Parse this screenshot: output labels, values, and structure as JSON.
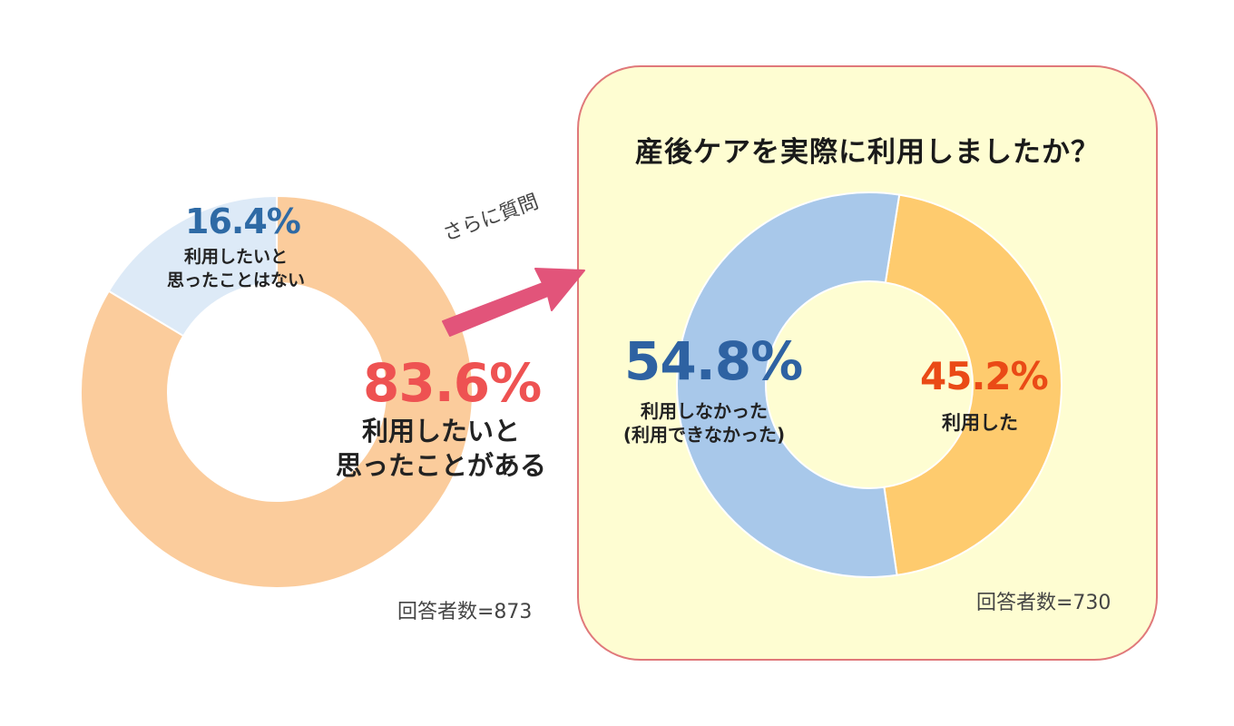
{
  "arrow_note": "さらに質問",
  "chart_data": [
    {
      "type": "pie",
      "variant": "donut",
      "categories": [
        "利用したいと思ったことはない",
        "利用したいと思ったことがある"
      ],
      "values": [
        16.4,
        83.6
      ],
      "colors": [
        "#ddeaf7",
        "#fbcc9c"
      ],
      "value_labels": [
        "16.4%",
        "83.6%"
      ],
      "label_colors": [
        "#2e6aa5",
        "#ee5252"
      ],
      "slice_labels": [
        [
          "利用したいと",
          "思ったことはない"
        ],
        [
          "利用したいと",
          "思ったことがある"
        ]
      ],
      "respondents": "回答者数=873"
    },
    {
      "type": "pie",
      "variant": "donut",
      "title": "産後ケアを実際に利用しましたか？",
      "categories": [
        "利用した",
        "利用しなかった（利用できなかった）"
      ],
      "values": [
        45.2,
        54.8
      ],
      "colors": [
        "#fecb6e",
        "#a8c8ea"
      ],
      "value_labels": [
        "45.2%",
        "54.8%"
      ],
      "label_colors": [
        "#ea4a16",
        "#2e62a2"
      ],
      "slice_labels": [
        [
          "利用した"
        ],
        [
          "利用しなかった",
          "(利用できなかった)"
        ]
      ],
      "respondents": "回答者数=730"
    }
  ]
}
